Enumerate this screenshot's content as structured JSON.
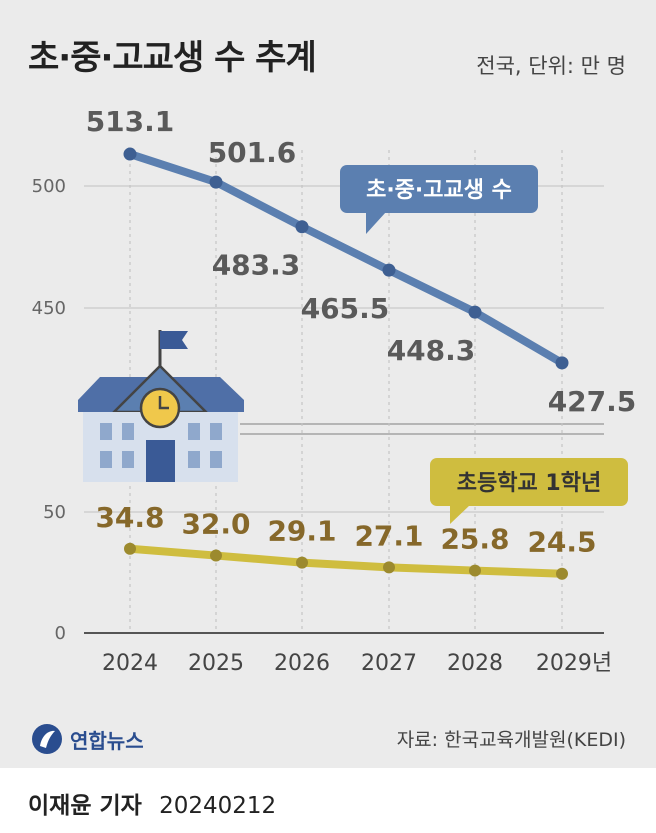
{
  "title": "초·중·고교생 수 추계",
  "unit_note": "전국, 단위: 만 명",
  "source": "자료: 한국교육개발원(KEDI)",
  "brand": "연합뉴스",
  "byline_name": "이재윤 기자",
  "byline_date": "20240212",
  "colors": {
    "blue": "#5b7fb0",
    "gold": "#cfbd3f",
    "gold_label": "#86682a"
  },
  "chart_data": {
    "type": "line",
    "x": [
      "2024",
      "2025",
      "2026",
      "2027",
      "2028",
      "2029년"
    ],
    "y_ticks": [
      "0",
      "50",
      "450",
      "500"
    ],
    "y_axis_break": true,
    "ylim": [
      0,
      525
    ],
    "grid": true,
    "series": [
      {
        "name": "초·중·고교생 수",
        "values": [
          513.1,
          501.6,
          483.3,
          465.5,
          448.3,
          427.5
        ],
        "color": "#5b7fb0"
      },
      {
        "name": "초등학교 1학년",
        "values": [
          34.8,
          32.0,
          29.1,
          27.1,
          25.8,
          24.5
        ],
        "color": "#cfbd3f"
      }
    ],
    "data_labels_blue": [
      "513.1",
      "501.6",
      "483.3",
      "465.5",
      "448.3",
      "427.5"
    ],
    "data_labels_gold": [
      "34.8",
      "32.0",
      "29.1",
      "27.1",
      "25.8",
      "24.5"
    ]
  }
}
